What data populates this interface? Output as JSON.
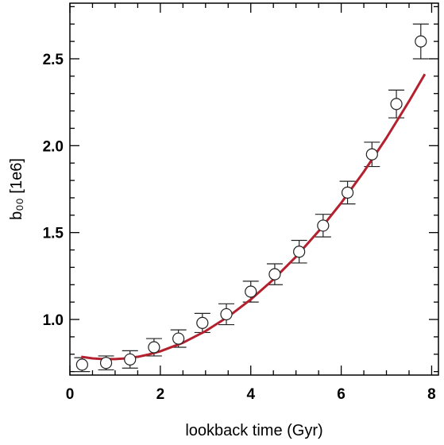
{
  "chart_data": {
    "type": "scatter",
    "xlabel": "lookback time (Gyr)",
    "ylabel": "b₀₀  [1e6]",
    "xlim": [
      0,
      8.15
    ],
    "ylim": [
      0.68,
      2.82
    ],
    "x_ticks": [
      {
        "value": 0,
        "label": "0"
      },
      {
        "value": 2,
        "label": "2"
      },
      {
        "value": 4,
        "label": "4"
      },
      {
        "value": 6,
        "label": "6"
      },
      {
        "value": 8,
        "label": "8"
      }
    ],
    "y_ticks": [
      {
        "value": 1.0,
        "label": "1.0"
      },
      {
        "value": 1.5,
        "label": "1.5"
      },
      {
        "value": 2.0,
        "label": "2.0"
      },
      {
        "value": 2.5,
        "label": "2.5"
      }
    ],
    "x_minor_step": 0.5,
    "y_minor_step": 0.1,
    "series": [
      {
        "marker": "open-circle",
        "x": [
          0.27,
          0.8,
          1.33,
          1.86,
          2.4,
          2.93,
          3.46,
          4.0,
          4.53,
          5.07,
          5.6,
          6.14,
          6.68,
          7.22,
          7.76
        ],
        "y": [
          0.74,
          0.75,
          0.77,
          0.84,
          0.89,
          0.98,
          1.03,
          1.16,
          1.26,
          1.39,
          1.54,
          1.73,
          1.95,
          2.24,
          2.6
        ],
        "yerr": [
          0.04,
          0.04,
          0.05,
          0.05,
          0.05,
          0.055,
          0.06,
          0.06,
          0.06,
          0.065,
          0.065,
          0.065,
          0.07,
          0.08,
          0.1
        ]
      },
      {
        "type": "line",
        "color": "#b5202e",
        "x": [
          0.25,
          0.5,
          0.75,
          1.0,
          1.25,
          1.5,
          1.75,
          2.0,
          2.5,
          3.0,
          3.5,
          4.0,
          4.5,
          5.0,
          5.5,
          6.0,
          6.5,
          7.0,
          7.5,
          7.85
        ],
        "y": [
          0.785,
          0.776,
          0.772,
          0.772,
          0.776,
          0.785,
          0.799,
          0.817,
          0.866,
          0.933,
          1.016,
          1.115,
          1.23,
          1.361,
          1.508,
          1.671,
          1.85,
          2.045,
          2.256,
          2.412
        ]
      }
    ]
  }
}
